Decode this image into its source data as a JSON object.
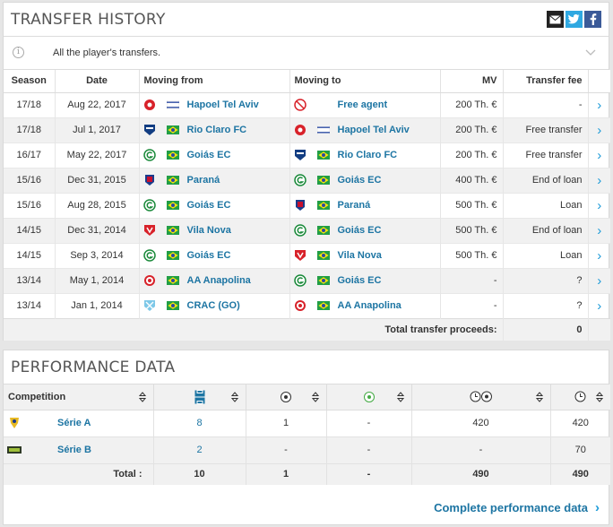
{
  "transfer": {
    "title": "TRANSFER HISTORY",
    "info": "All the player's transfers.",
    "headers": [
      "Season",
      "Date",
      "Moving from",
      "Moving to",
      "MV",
      "Transfer fee"
    ],
    "rows": [
      {
        "season": "17/18",
        "date": "Aug 22, 2017",
        "from": "Hapoel Tel Aviv",
        "from_crest": "hapoel",
        "from_flag": "israel",
        "to": "Free agent",
        "to_crest": "free",
        "to_flag": "",
        "mv": "200 Th. €",
        "fee": "-"
      },
      {
        "season": "17/18",
        "date": "Jul 1, 2017",
        "from": "Rio Claro FC",
        "from_crest": "rioclaro",
        "from_flag": "brazil",
        "to": "Hapoel Tel Aviv",
        "to_crest": "hapoel",
        "to_flag": "israel",
        "mv": "200 Th. €",
        "fee": "Free transfer"
      },
      {
        "season": "16/17",
        "date": "May 22, 2017",
        "from": "Goiás EC",
        "from_crest": "goias",
        "from_flag": "brazil",
        "to": "Rio Claro FC",
        "to_crest": "rioclaro",
        "to_flag": "brazil",
        "mv": "200 Th. €",
        "fee": "Free transfer"
      },
      {
        "season": "15/16",
        "date": "Dec 31, 2015",
        "from": "Paraná",
        "from_crest": "parana",
        "from_flag": "brazil",
        "to": "Goiás EC",
        "to_crest": "goias",
        "to_flag": "brazil",
        "mv": "400 Th. €",
        "fee": "End of loan"
      },
      {
        "season": "15/16",
        "date": "Aug 28, 2015",
        "from": "Goiás EC",
        "from_crest": "goias",
        "from_flag": "brazil",
        "to": "Paraná",
        "to_crest": "parana",
        "to_flag": "brazil",
        "mv": "500 Th. €",
        "fee": "Loan"
      },
      {
        "season": "14/15",
        "date": "Dec 31, 2014",
        "from": "Vila Nova",
        "from_crest": "vilanova",
        "from_flag": "brazil",
        "to": "Goiás EC",
        "to_crest": "goias",
        "to_flag": "brazil",
        "mv": "500 Th. €",
        "fee": "End of loan"
      },
      {
        "season": "14/15",
        "date": "Sep 3, 2014",
        "from": "Goiás EC",
        "from_crest": "goias",
        "from_flag": "brazil",
        "to": "Vila Nova",
        "to_crest": "vilanova",
        "to_flag": "brazil",
        "mv": "500 Th. €",
        "fee": "Loan"
      },
      {
        "season": "13/14",
        "date": "May 1, 2014",
        "from": "AA Anapolina",
        "from_crest": "anapolina",
        "from_flag": "brazil",
        "to": "Goiás EC",
        "to_crest": "goias",
        "to_flag": "brazil",
        "mv": "-",
        "fee": "?"
      },
      {
        "season": "13/14",
        "date": "Jan 1, 2014",
        "from": "CRAC (GO)",
        "from_crest": "crac",
        "from_flag": "brazil",
        "to": "AA Anapolina",
        "to_crest": "anapolina",
        "to_flag": "brazil",
        "mv": "-",
        "fee": "?"
      }
    ],
    "total_label": "Total transfer proceeds:",
    "total_value": "0"
  },
  "performance": {
    "title": "PERFORMANCE DATA",
    "headers": {
      "competition": "Competition"
    },
    "header_icons": [
      "pitch-icon",
      "goal-ball-icon",
      "assist-ball-icon",
      "minutes-per-goal-icon",
      "minutes-played-icon"
    ],
    "rows": [
      {
        "competition": "Série A",
        "logo": "serie-a",
        "apps": "8",
        "goals": "1",
        "assists": "-",
        "min_per_goal": "420",
        "minutes": "420"
      },
      {
        "competition": "Série B",
        "logo": "serie-b",
        "apps": "2",
        "goals": "-",
        "assists": "-",
        "min_per_goal": "-",
        "minutes": "70"
      }
    ],
    "total": {
      "label": "Total :",
      "apps": "10",
      "goals": "1",
      "assists": "-",
      "min_per_goal": "490",
      "minutes": "490"
    },
    "more_link": "Complete performance data"
  },
  "colors": {
    "link": "#1d75a3",
    "accent": "#1d9bd8",
    "stripe": "#f1f1f1"
  }
}
